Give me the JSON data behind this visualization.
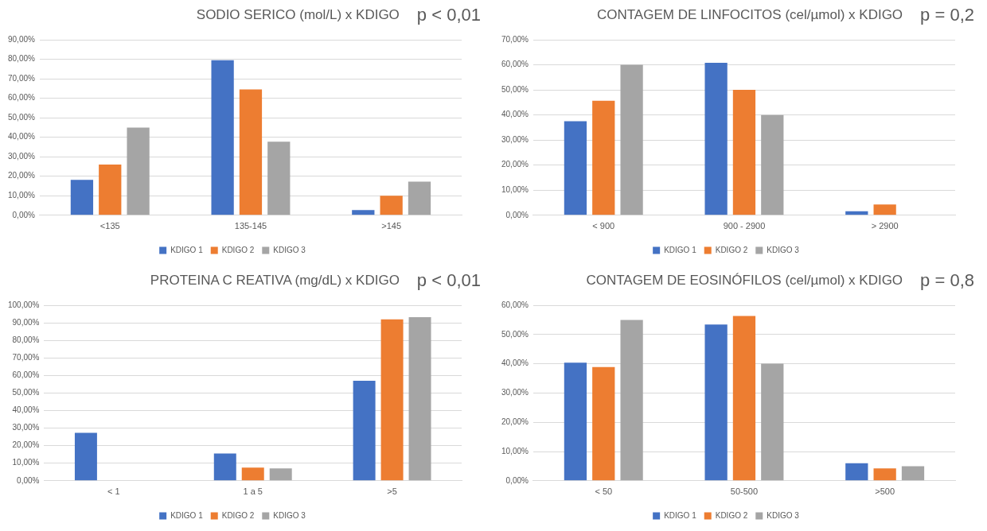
{
  "chart_data": [
    {
      "type": "bar",
      "title": "SODIO SERICO (mol/L) x KDIGO",
      "annotations": [
        "p < 0,01"
      ],
      "categories": [
        "<135",
        "135-145",
        ">145"
      ],
      "series": [
        {
          "name": "KDIGO 1",
          "color": "#4472c4",
          "values": [
            18.2,
            79.5,
            2.7
          ]
        },
        {
          "name": "KDIGO 2",
          "color": "#ed7d31",
          "values": [
            26,
            64.5,
            10
          ]
        },
        {
          "name": "KDIGO 3",
          "color": "#a5a5a5",
          "values": [
            45,
            37.7,
            17.2
          ]
        }
      ],
      "ylim": [
        0,
        90
      ],
      "yticks": [
        {
          "value": 0,
          "label": "0,00%"
        },
        {
          "value": 10,
          "label": "10,00%"
        },
        {
          "value": 20,
          "label": "20,00%"
        },
        {
          "value": 30,
          "label": "30,00%"
        },
        {
          "value": 40,
          "label": "40,00%"
        },
        {
          "value": 50,
          "label": "50,00%"
        },
        {
          "value": 60,
          "label": "60,00%"
        },
        {
          "value": 70,
          "label": "70,00%"
        },
        {
          "value": 80,
          "label": "80,00%"
        },
        {
          "value": 90,
          "label": "90,00%"
        }
      ],
      "grid": "y",
      "legend": "bottom"
    },
    {
      "type": "bar",
      "title": "CONTAGEM DE LINFOCITOS (cel/µmol) x KDIGO",
      "annotations": [
        "p = 0,2"
      ],
      "categories": [
        "< 900",
        "900 - 2900",
        "> 2900"
      ],
      "series": [
        {
          "name": "KDIGO 1",
          "color": "#4472c4",
          "values": [
            37.5,
            60.8,
            1.6
          ]
        },
        {
          "name": "KDIGO 2",
          "color": "#ed7d31",
          "values": [
            45.7,
            50,
            4.3
          ]
        },
        {
          "name": "KDIGO 3",
          "color": "#a5a5a5",
          "values": [
            60,
            40,
            0
          ]
        }
      ],
      "ylim": [
        0,
        70
      ],
      "yticks": [
        {
          "value": 0,
          "label": "0,00%"
        },
        {
          "value": 10,
          "label": "10,00%"
        },
        {
          "value": 20,
          "label": "20,00%"
        },
        {
          "value": 30,
          "label": "30,00%"
        },
        {
          "value": 40,
          "label": "40,00%"
        },
        {
          "value": 50,
          "label": "50,00%"
        },
        {
          "value": 60,
          "label": "60,00%"
        },
        {
          "value": 70,
          "label": "70,00%"
        }
      ],
      "grid": "y",
      "legend": "bottom"
    },
    {
      "type": "bar",
      "title": "PROTEINA C REATIVA (mg/dL) x KDIGO",
      "annotations": [
        "p < 0,01"
      ],
      "categories": [
        "< 1",
        "1 a 5",
        ">5"
      ],
      "series": [
        {
          "name": "KDIGO 1",
          "color": "#4472c4",
          "values": [
            27.3,
            15.5,
            57
          ]
        },
        {
          "name": "KDIGO 2",
          "color": "#ed7d31",
          "values": [
            0,
            7.5,
            92
          ]
        },
        {
          "name": "KDIGO 3",
          "color": "#a5a5a5",
          "values": [
            0,
            7,
            93.2
          ]
        }
      ],
      "ylim": [
        0,
        100
      ],
      "yticks": [
        {
          "value": 0,
          "label": "0,00%"
        },
        {
          "value": 10,
          "label": "10,00%"
        },
        {
          "value": 20,
          "label": "20,00%"
        },
        {
          "value": 30,
          "label": "30,00%"
        },
        {
          "value": 40,
          "label": "40,00%"
        },
        {
          "value": 50,
          "label": "50,00%"
        },
        {
          "value": 60,
          "label": "60,00%"
        },
        {
          "value": 70,
          "label": "70,00%"
        },
        {
          "value": 80,
          "label": "80,00%"
        },
        {
          "value": 90,
          "label": "90,00%"
        },
        {
          "value": 100,
          "label": "100,00%"
        }
      ],
      "grid": "y",
      "legend": "bottom"
    },
    {
      "type": "bar",
      "title": "CONTAGEM DE EOSINÓFILOS (cel/µmol) x KDIGO",
      "annotations": [
        "p = 0,8"
      ],
      "categories": [
        "< 50",
        "50-500",
        ">500"
      ],
      "series": [
        {
          "name": "KDIGO 1",
          "color": "#4472c4",
          "values": [
            40.4,
            53.4,
            6
          ]
        },
        {
          "name": "KDIGO 2",
          "color": "#ed7d31",
          "values": [
            38.9,
            56.3,
            4.2
          ]
        },
        {
          "name": "KDIGO 3",
          "color": "#a5a5a5",
          "values": [
            55,
            40,
            5
          ]
        }
      ],
      "ylim": [
        0,
        60
      ],
      "yticks": [
        {
          "value": 0,
          "label": "0,00%"
        },
        {
          "value": 10,
          "label": "10,00%"
        },
        {
          "value": 20,
          "label": "20,00%"
        },
        {
          "value": 30,
          "label": "30,00%"
        },
        {
          "value": 40,
          "label": "40,00%"
        },
        {
          "value": 50,
          "label": "50,00%"
        },
        {
          "value": 60,
          "label": "60,00%"
        }
      ],
      "grid": "y",
      "legend": "bottom"
    }
  ]
}
